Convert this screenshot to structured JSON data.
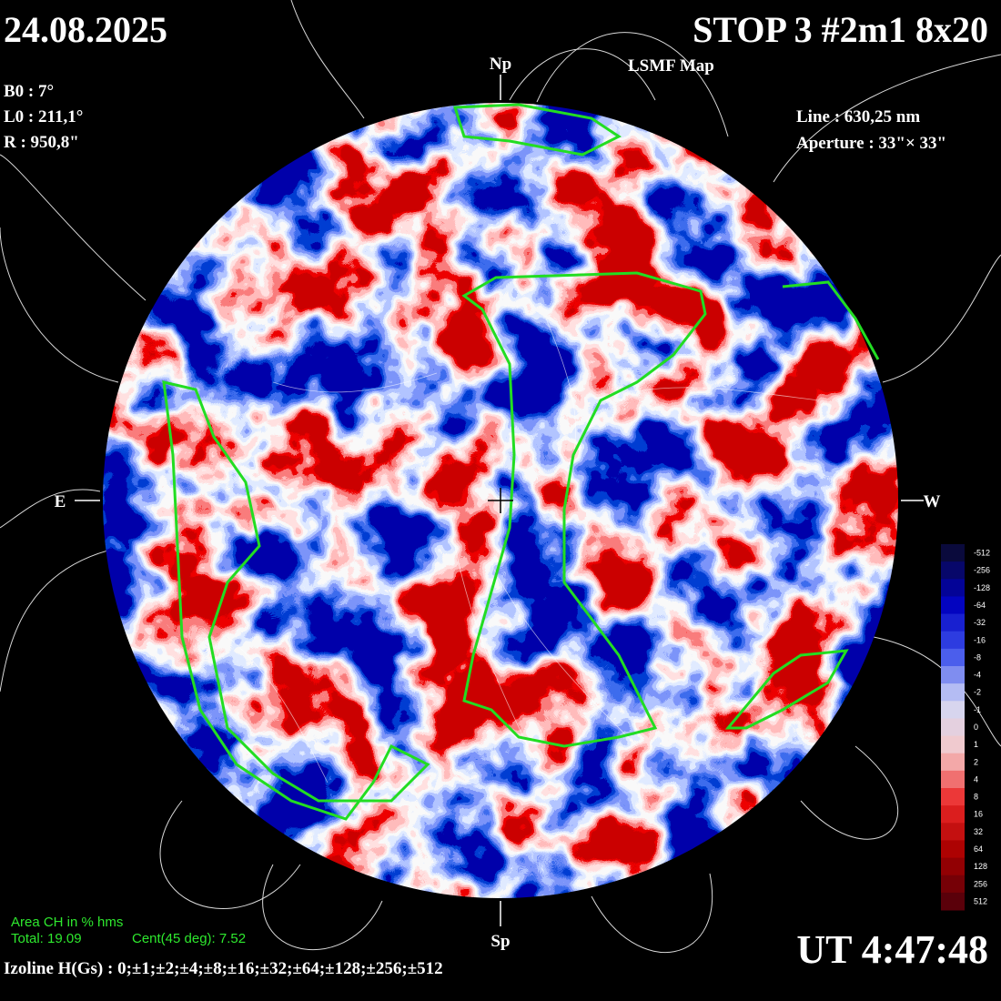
{
  "header": {
    "date": "24.08.2025",
    "title": "STOP 3 #2m1 8x20",
    "subtitle": "LSMF  Map"
  },
  "params": [
    "B0 : 7°",
    "L0 : 211,1°",
    "R  : 950,8\""
  ],
  "instrument": [
    "Line :  630,25 nm",
    "Aperture : 33\"× 33\""
  ],
  "directions": {
    "north": "Np",
    "south": "Sp",
    "east": "E",
    "west": "W"
  },
  "colorbar": {
    "labels": [
      "-512",
      "-256",
      "-128",
      "-64",
      "-32",
      "-16",
      "-8",
      "-4",
      "-2",
      "-1",
      "0",
      "1",
      "2",
      "4",
      "8",
      "16",
      "32",
      "64",
      "128",
      "256",
      "512"
    ]
  },
  "area": {
    "title": "Area CH in % hms",
    "total": "Total: 19.09",
    "center": "Cent(45 deg): 7.52"
  },
  "time": "UT 4:47:48",
  "isolines": "Izoline H(Gs) : 0;±1;±2;±4;±8;±16;±32;±64;±128;±256;±512"
}
